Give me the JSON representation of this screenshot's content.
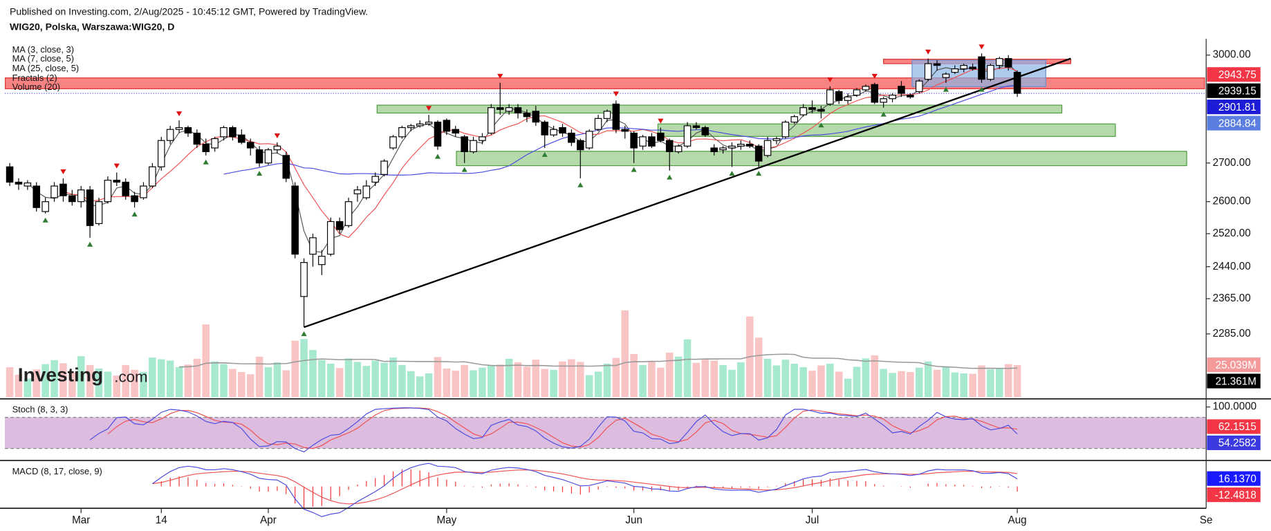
{
  "header": {
    "published": "Published on Investing.com, 2/Aug/2025 - 10:45:12 GMT, Powered by TradingView.",
    "symbol": "WIG20, Polska, Warszawa:WIG20, D"
  },
  "logo": {
    "brand": "Investing",
    "suffix": ".com"
  },
  "chart_data": {
    "type": "candlestick",
    "categories": [
      null,
      null,
      null,
      null,
      null,
      null,
      null,
      null,
      "Mar",
      null,
      null,
      null,
      null,
      null,
      null,
      null,
      null,
      "14",
      null,
      null,
      null,
      null,
      null,
      null,
      null,
      null,
      null,
      null,
      null,
      "Apr",
      null,
      null,
      null,
      null,
      null,
      null,
      null,
      null,
      null,
      null,
      null,
      null,
      null,
      null,
      null,
      null,
      null,
      null,
      null,
      "May",
      null,
      null,
      null,
      null,
      null,
      null,
      null,
      null,
      null,
      null,
      null,
      null,
      null,
      null,
      null,
      null,
      null,
      null,
      null,
      null,
      "Jun",
      null,
      null,
      null,
      null,
      null,
      null,
      null,
      null,
      null,
      null,
      null,
      null,
      null,
      null,
      null,
      null,
      null,
      null,
      null,
      "Jul",
      null,
      null,
      null,
      null,
      null,
      null,
      null,
      null,
      null,
      null,
      null,
      null,
      null,
      null,
      null,
      null,
      null,
      null,
      null,
      null,
      null,
      null,
      "Aug"
    ],
    "x_end_label": "Se",
    "open": [
      2690,
      2650,
      2640,
      2640,
      2575,
      2610,
      2645,
      2615,
      2600,
      2630,
      2545,
      2600,
      2655,
      2650,
      2615,
      2610,
      2640,
      2690,
      2760,
      2790,
      2795,
      2780,
      2750,
      2740,
      2770,
      2795,
      2775,
      2755,
      2735,
      2700,
      2735,
      2720,
      2640,
      2370,
      2470,
      2445,
      2470,
      2550,
      2540,
      2620,
      2610,
      2650,
      2670,
      2740,
      2770,
      2795,
      2800,
      2805,
      2810,
      2815,
      2790,
      2770,
      2730,
      2760,
      2780,
      2850,
      2840,
      2850,
      2835,
      2840,
      2810,
      2775,
      2795,
      2780,
      2760,
      2740,
      2790,
      2820,
      2860,
      2790,
      2780,
      2745,
      2770,
      2780,
      2760,
      2730,
      2745,
      2800,
      2795,
      2740,
      2735,
      2740,
      2745,
      2750,
      2745,
      2720,
      2760,
      2770,
      2810,
      2830,
      2850,
      2845,
      2860,
      2895,
      2870,
      2885,
      2900,
      2915,
      2865,
      2875,
      2910,
      2885,
      2895,
      2930,
      2975,
      2935,
      2950,
      2960,
      2965,
      2995,
      2930,
      2970,
      2990,
      2950
    ],
    "high": [
      2700,
      2660,
      2655,
      2650,
      2610,
      2650,
      2660,
      2630,
      2640,
      2640,
      2610,
      2665,
      2675,
      2660,
      2625,
      2650,
      2700,
      2770,
      2800,
      2815,
      2800,
      2790,
      2765,
      2770,
      2800,
      2800,
      2790,
      2765,
      2745,
      2740,
      2755,
      2730,
      2650,
      2460,
      2520,
      2480,
      2560,
      2560,
      2610,
      2640,
      2655,
      2675,
      2710,
      2775,
      2800,
      2805,
      2815,
      2830,
      2815,
      2820,
      2800,
      2775,
      2770,
      2780,
      2860,
      2920,
      2860,
      2860,
      2845,
      2855,
      2815,
      2800,
      2805,
      2790,
      2765,
      2790,
      2830,
      2845,
      2870,
      2800,
      2785,
      2775,
      2780,
      2795,
      2765,
      2750,
      2810,
      2810,
      2800,
      2750,
      2745,
      2755,
      2760,
      2760,
      2750,
      2770,
      2770,
      2815,
      2830,
      2860,
      2870,
      2855,
      2910,
      2900,
      2890,
      2905,
      2915,
      2920,
      2880,
      2890,
      2925,
      2890,
      2930,
      2990,
      2985,
      2950,
      2970,
      2975,
      2975,
      3005,
      2975,
      2995,
      3000,
      2955
    ],
    "low": [
      2640,
      2630,
      2630,
      2575,
      2570,
      2600,
      2600,
      2590,
      2585,
      2510,
      2540,
      2595,
      2640,
      2605,
      2585,
      2605,
      2635,
      2680,
      2750,
      2780,
      2770,
      2740,
      2720,
      2730,
      2760,
      2760,
      2750,
      2720,
      2690,
      2695,
      2725,
      2650,
      2460,
      2300,
      2440,
      2420,
      2465,
      2520,
      2535,
      2600,
      2605,
      2640,
      2665,
      2735,
      2765,
      2785,
      2795,
      2800,
      2735,
      2775,
      2770,
      2700,
      2725,
      2750,
      2775,
      2830,
      2830,
      2820,
      2810,
      2800,
      2740,
      2770,
      2770,
      2745,
      2660,
      2735,
      2785,
      2810,
      2780,
      2765,
      2700,
      2735,
      2740,
      2755,
      2680,
      2725,
      2740,
      2790,
      2770,
      2720,
      2725,
      2690,
      2735,
      2740,
      2690,
      2715,
      2750,
      2765,
      2805,
      2825,
      2835,
      2820,
      2855,
      2860,
      2860,
      2880,
      2895,
      2860,
      2850,
      2865,
      2880,
      2875,
      2890,
      2925,
      2955,
      2920,
      2945,
      2950,
      2955,
      2920,
      2925,
      2960,
      2955,
      2880
    ],
    "close": [
      2650,
      2645,
      2648,
      2585,
      2600,
      2640,
      2615,
      2600,
      2630,
      2540,
      2600,
      2655,
      2650,
      2615,
      2600,
      2640,
      2690,
      2760,
      2790,
      2795,
      2780,
      2750,
      2730,
      2765,
      2795,
      2770,
      2755,
      2740,
      2700,
      2735,
      2745,
      2660,
      2470,
      2450,
      2510,
      2465,
      2550,
      2530,
      2600,
      2630,
      2640,
      2665,
      2705,
      2770,
      2795,
      2800,
      2805,
      2810,
      2745,
      2785,
      2780,
      2730,
      2760,
      2770,
      2850,
      2845,
      2850,
      2835,
      2825,
      2810,
      2775,
      2790,
      2780,
      2755,
      2735,
      2785,
      2820,
      2840,
      2790,
      2785,
      2740,
      2770,
      2745,
      2760,
      2730,
      2745,
      2800,
      2795,
      2775,
      2730,
      2740,
      2745,
      2750,
      2745,
      2705,
      2760,
      2765,
      2810,
      2825,
      2850,
      2845,
      2840,
      2900,
      2870,
      2880,
      2900,
      2910,
      2865,
      2875,
      2885,
      2890,
      2880,
      2925,
      2975,
      2970,
      2945,
      2960,
      2970,
      2960,
      2930,
      2970,
      2990,
      2965,
      2890
    ],
    "volume": [
      24.5,
      22.8,
      21.9,
      24.0,
      25.2,
      26.1,
      25.4,
      23.3,
      27.0,
      25.0,
      24.2,
      23.5,
      22.6,
      25.0,
      23.9,
      23.4,
      26.7,
      26.3,
      26.0,
      24.5,
      25.1,
      26.4,
      34.2,
      25.8,
      25.2,
      24.1,
      23.4,
      22.9,
      26.9,
      24.5,
      25.6,
      23.8,
      30.5,
      30.9,
      28.4,
      26.1,
      25.3,
      24.3,
      26.5,
      25.7,
      24.8,
      26.0,
      25.5,
      26.7,
      25.0,
      23.6,
      22.4,
      23.1,
      26.8,
      24.2,
      23.7,
      25.0,
      23.8,
      24.4,
      24.9,
      25.1,
      26.4,
      25.6,
      24.6,
      26.2,
      24.1,
      23.9,
      25.8,
      26.3,
      25.7,
      22.7,
      23.5,
      25.3,
      26.6,
      37.4,
      27.5,
      25.0,
      25.8,
      24.4,
      27.8,
      26.9,
      30.8,
      25.5,
      26.2,
      26.0,
      25.0,
      23.9,
      25.6,
      36.0,
      31.2,
      26.4,
      24.9,
      26.2,
      25.3,
      24.5,
      23.7,
      24.9,
      25.3,
      23.5,
      21.9,
      24.6,
      26.5,
      27.2,
      24.1,
      23.2,
      23.6,
      23.4,
      24.4,
      25.8,
      23.9,
      24.6,
      23.3,
      23.1,
      23.0,
      24.9,
      24.0,
      24.3,
      25.2,
      25.0
    ],
    "log_scale": true,
    "ylim": [
      2148,
      3043
    ],
    "yticks": [
      {
        "value": 3000,
        "label": "3000.00"
      },
      {
        "value": 2700,
        "label": "2700.00"
      },
      {
        "value": 2600,
        "label": "2600.00"
      },
      {
        "value": 2520,
        "label": "2520.00"
      },
      {
        "value": 2440,
        "label": "2440.00"
      },
      {
        "value": 2365,
        "label": "2365.00"
      },
      {
        "value": 2285,
        "label": "2285.00"
      }
    ],
    "volume_ylim": [
      17.68,
      37.92
    ],
    "stoch_ylim": [
      0,
      100
    ],
    "stoch_yticks": [
      {
        "value": 100,
        "label": "100.0000"
      }
    ],
    "stoch_band": [
      20,
      80
    ],
    "macd_ylim": [
      -45,
      45
    ],
    "up_color": "#ffffff",
    "down_color": "#000000",
    "volume_up_color": "#a6e9cf",
    "volume_down_color": "#f9c4c4",
    "indicators": [
      {
        "name": "MA (3, close, 3)",
        "period": 3,
        "color": "#555555"
      },
      {
        "name": "MA (7, close, 5)",
        "period": 7,
        "color": "#f05050"
      },
      {
        "name": "MA (25, close, 5)",
        "period": 25,
        "color": "#4a4ae0"
      }
    ],
    "fractals": {
      "name": "Fractals (2)",
      "period": 2,
      "up_color": "#e01010",
      "down_color": "#2e7d32"
    },
    "volume_ma": {
      "name": "Volume (20)",
      "period": 20,
      "color": "#999999"
    },
    "stoch": {
      "name": "Stoch (8, 3, 3)",
      "k": 8,
      "smooth": 3,
      "d": 3,
      "k_color": "#4a4ae0",
      "d_color": "#f05050",
      "band_color": "#dcbde0"
    },
    "macd": {
      "name": "MACD (8, 17, close, 9)",
      "fast": 8,
      "slow": 17,
      "signal": 9,
      "macd_color": "#4a4ae0",
      "signal_color": "#f05050",
      "hist_color": "#f03030"
    },
    "zones": [
      {
        "from": 2903,
        "to": 2934,
        "start": -0.5,
        "end": 134,
        "color": "rgba(245,90,90,0.75)",
        "border": "#e03030"
      },
      {
        "from": 2975,
        "to": 2988,
        "start": 98,
        "end": 119,
        "color": "rgba(245,90,90,0.75)",
        "border": "#e03030"
      },
      {
        "from": 2909,
        "to": 2985,
        "start": 101.2,
        "end": 116.2,
        "color": "rgba(140,180,230,0.7)",
        "border": "#6a8fd0"
      },
      {
        "from": 2835,
        "to": 2857,
        "start": 41.2,
        "end": 118,
        "color": "rgba(110,180,90,0.5)",
        "border": "#4a9a3a"
      },
      {
        "from": 2771,
        "to": 2805,
        "start": 72.7,
        "end": 124,
        "color": "rgba(110,180,90,0.5)",
        "border": "#4a9a3a"
      },
      {
        "from": 2693,
        "to": 2731,
        "start": 50.1,
        "end": 132,
        "color": "rgba(110,180,90,0.5)",
        "border": "#4a9a3a"
      }
    ],
    "trendline": {
      "from_index": 33,
      "from": 2300,
      "to_index": 119,
      "to": 2990,
      "color": "#000000"
    },
    "price_labels": [
      {
        "value": 2943.75,
        "label": "2943.75",
        "scale": "price",
        "color": "#f23645"
      },
      {
        "value": 2939.15,
        "label": "2939.15",
        "scale": "price",
        "color": "#000000"
      },
      {
        "value": 2901.81,
        "label": "2901.81",
        "scale": "price",
        "color": "#1c1cd6"
      },
      {
        "value": 2884.84,
        "label": "2884.84",
        "scale": "price",
        "color": "#5b7fe0"
      },
      {
        "value": 25.039,
        "label": "25.039M",
        "scale": "volume",
        "color": "#f49a9a"
      },
      {
        "value": 21.361,
        "label": "21.361M",
        "scale": "volume",
        "color": "#000000"
      },
      {
        "value": 62.1515,
        "label": "62.1515",
        "scale": "stoch",
        "color": "#f23645"
      },
      {
        "value": 54.2582,
        "label": "54.2582",
        "scale": "stoch",
        "color": "#3a3ae0"
      },
      {
        "value": 16.137,
        "label": "16.1370",
        "scale": "macd",
        "color": "#1a1aff"
      },
      {
        "value": -12.4818,
        "label": "-12.4818",
        "scale": "macd",
        "color": "#f23645"
      }
    ]
  }
}
